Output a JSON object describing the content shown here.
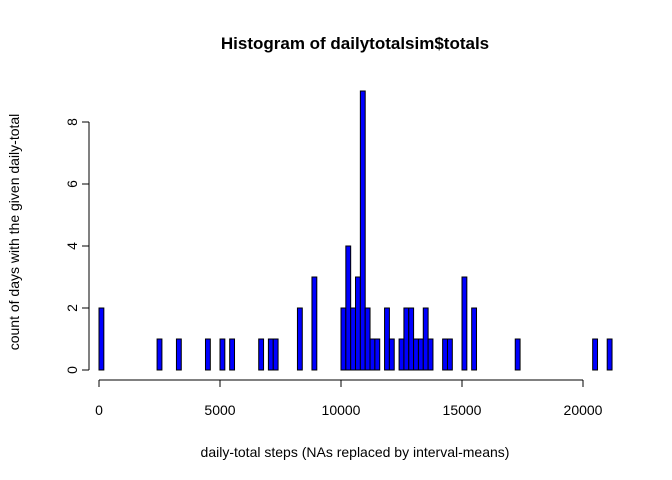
{
  "chart_data": {
    "type": "bar",
    "title": "Histogram of dailytotalsim$totals",
    "xlabel": "daily-total steps (NAs replaced by interval-means)",
    "ylabel": "count of days with the given daily-total",
    "bin_width": 200,
    "xlim": [
      0,
      21200
    ],
    "ylim": [
      0,
      9
    ],
    "x_ticks": [
      0,
      5000,
      10000,
      15000,
      20000
    ],
    "y_ticks": [
      0,
      2,
      4,
      6,
      8
    ],
    "bins": [
      {
        "x0": 0,
        "x1": 200,
        "count": 2
      },
      {
        "x0": 2400,
        "x1": 2600,
        "count": 1
      },
      {
        "x0": 3200,
        "x1": 3400,
        "count": 1
      },
      {
        "x0": 4400,
        "x1": 4600,
        "count": 1
      },
      {
        "x0": 5000,
        "x1": 5200,
        "count": 1
      },
      {
        "x0": 5400,
        "x1": 5600,
        "count": 1
      },
      {
        "x0": 6600,
        "x1": 6800,
        "count": 1
      },
      {
        "x0": 7000,
        "x1": 7200,
        "count": 1
      },
      {
        "x0": 7200,
        "x1": 7400,
        "count": 1
      },
      {
        "x0": 8200,
        "x1": 8400,
        "count": 2
      },
      {
        "x0": 8800,
        "x1": 9000,
        "count": 3
      },
      {
        "x0": 10000,
        "x1": 10200,
        "count": 2
      },
      {
        "x0": 10200,
        "x1": 10400,
        "count": 4
      },
      {
        "x0": 10400,
        "x1": 10600,
        "count": 2
      },
      {
        "x0": 10600,
        "x1": 10800,
        "count": 3
      },
      {
        "x0": 10800,
        "x1": 11000,
        "count": 9
      },
      {
        "x0": 11000,
        "x1": 11200,
        "count": 2
      },
      {
        "x0": 11200,
        "x1": 11400,
        "count": 1
      },
      {
        "x0": 11400,
        "x1": 11600,
        "count": 1
      },
      {
        "x0": 11800,
        "x1": 12000,
        "count": 2
      },
      {
        "x0": 12000,
        "x1": 12200,
        "count": 1
      },
      {
        "x0": 12400,
        "x1": 12600,
        "count": 1
      },
      {
        "x0": 12600,
        "x1": 12800,
        "count": 2
      },
      {
        "x0": 12800,
        "x1": 13000,
        "count": 2
      },
      {
        "x0": 13000,
        "x1": 13200,
        "count": 1
      },
      {
        "x0": 13200,
        "x1": 13400,
        "count": 1
      },
      {
        "x0": 13400,
        "x1": 13600,
        "count": 2
      },
      {
        "x0": 13600,
        "x1": 13800,
        "count": 1
      },
      {
        "x0": 14200,
        "x1": 14400,
        "count": 1
      },
      {
        "x0": 14400,
        "x1": 14600,
        "count": 1
      },
      {
        "x0": 15000,
        "x1": 15200,
        "count": 3
      },
      {
        "x0": 15400,
        "x1": 15600,
        "count": 2
      },
      {
        "x0": 17200,
        "x1": 17400,
        "count": 1
      },
      {
        "x0": 20400,
        "x1": 20600,
        "count": 1
      },
      {
        "x0": 21000,
        "x1": 21200,
        "count": 1
      }
    ],
    "bar_color": "#0000ff",
    "bar_border": "#000000",
    "grid": false
  }
}
